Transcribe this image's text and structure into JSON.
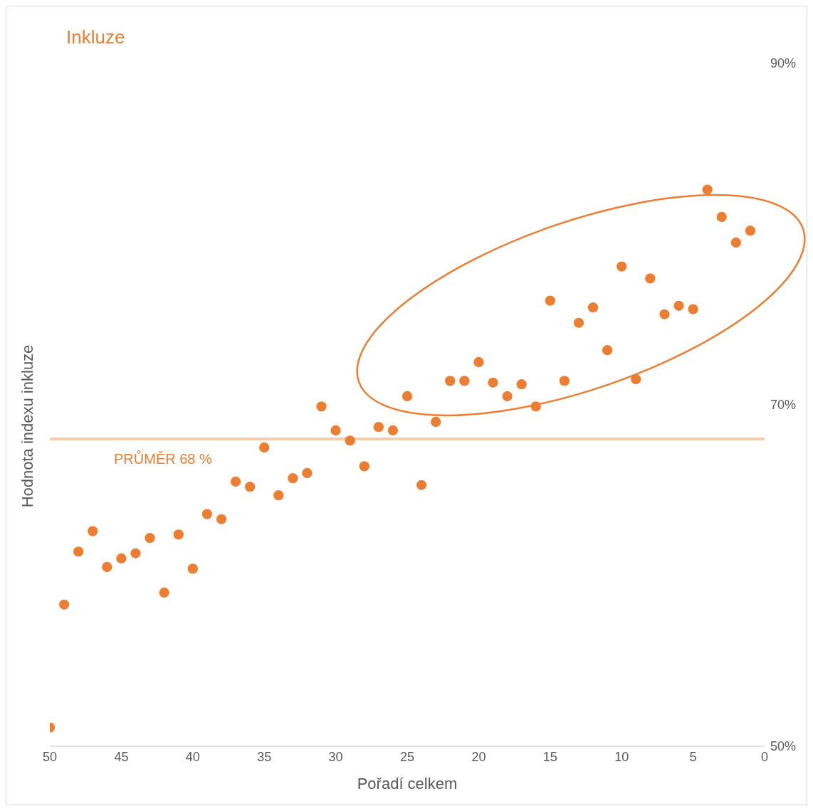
{
  "chart_data": {
    "type": "scatter",
    "title": "Inkluze",
    "xlabel": "Pořadí celkem",
    "ylabel": "Hodnota indexu inkluze",
    "x": [
      50,
      49,
      48,
      47,
      46,
      45,
      44,
      43,
      42,
      41,
      40,
      39,
      38,
      37,
      36,
      35,
      34,
      33,
      32,
      31,
      30,
      29,
      28,
      27,
      26,
      25,
      24,
      23,
      22,
      21,
      20,
      19,
      18,
      17,
      16,
      15,
      14,
      13,
      12,
      11,
      10,
      9,
      8,
      7,
      6,
      5,
      4,
      3,
      2,
      1
    ],
    "series": [
      {
        "color": "#ed7d31",
        "values": [
          51.1,
          58.3,
          61.4,
          62.6,
          60.5,
          61.0,
          61.3,
          62.2,
          59.0,
          62.4,
          60.4,
          63.6,
          63.3,
          65.5,
          65.2,
          67.5,
          64.7,
          65.7,
          66.0,
          69.9,
          68.5,
          67.9,
          66.4,
          68.7,
          68.5,
          70.5,
          65.3,
          69.0,
          71.4,
          71.4,
          72.5,
          71.3,
          70.5,
          71.2,
          69.9,
          76.1,
          71.4,
          74.8,
          75.7,
          73.2,
          78.1,
          71.5,
          77.4,
          75.3,
          75.8,
          75.6,
          82.6,
          81.0,
          79.5,
          80.2
        ]
      }
    ],
    "xlim": [
      50,
      0
    ],
    "xticks": [
      50,
      45,
      40,
      35,
      30,
      25,
      20,
      15,
      10,
      5,
      0
    ],
    "ylim": [
      50,
      90
    ],
    "yticks": [
      {
        "value": 50,
        "label": "50%"
      },
      {
        "value": 70,
        "label": "70%"
      },
      {
        "value": 90,
        "label": "90%"
      }
    ],
    "marker": "circle",
    "grid": false,
    "legend": false,
    "ref_lines": [
      {
        "axis": "y",
        "value": 68,
        "label": "PRŮMĚR 68 %",
        "color": "#f8cbad"
      }
    ]
  }
}
